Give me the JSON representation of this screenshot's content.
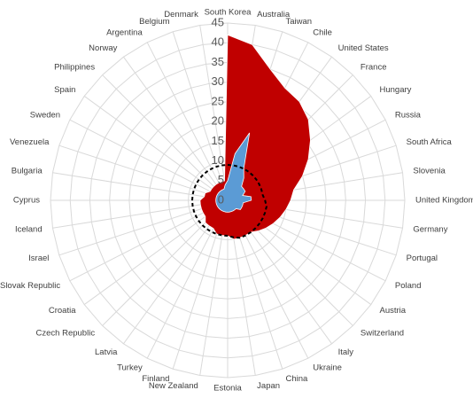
{
  "chart_data": {
    "type": "radar",
    "categories": [
      "South Korea",
      "Australia",
      "Taiwan",
      "Chile",
      "United States",
      "France",
      "Hungary",
      "Russia",
      "South Africa",
      "Slovenia",
      "United Kingdom",
      "Germany",
      "Portugal",
      "Poland",
      "Austria",
      "Switzerland",
      "Italy",
      "Ukraine",
      "China",
      "Japan",
      "Estonia",
      "New Zealand",
      "Finland",
      "Turkey",
      "Latvia",
      "Czech Republic",
      "Croatia",
      "Slovak Republic",
      "Israel",
      "Iceland",
      "Cyprus",
      "Bulgaria",
      "Venezuela",
      "Sweden",
      "Spain",
      "Philippines",
      "Norway",
      "Argentina",
      "Belgium",
      "Denmark"
    ],
    "series": [
      {
        "color": "#c00000",
        "fill": true,
        "values": [
          42,
          40,
          35,
          32,
          31,
          29,
          26,
          23,
          20,
          17,
          16,
          15,
          14,
          13,
          12,
          11,
          10,
          10,
          10,
          10,
          9,
          9,
          9,
          8,
          8,
          8,
          7,
          7,
          7,
          7,
          7,
          6,
          6,
          5,
          5,
          5,
          5,
          5,
          5,
          5
        ]
      },
      {
        "color": "#5b9bd5",
        "fill": true,
        "values": [
          5,
          12,
          18,
          9,
          7,
          5,
          5,
          5,
          4,
          6,
          6,
          4,
          4,
          4,
          4,
          3,
          3,
          3,
          3,
          3,
          3,
          3,
          3,
          3,
          3,
          3,
          3,
          3,
          3,
          3,
          3,
          3,
          3,
          3,
          3,
          3,
          3,
          3,
          3,
          4
        ]
      },
      {
        "color": "#000000",
        "fill": false,
        "dashed": true,
        "values": [
          9,
          9,
          9,
          9,
          9,
          9,
          9,
          9,
          9,
          9,
          9.5,
          10,
          10,
          10,
          10,
          10,
          10,
          10,
          10,
          9.5,
          9,
          9,
          9,
          9,
          9,
          9,
          9,
          9,
          9,
          9,
          9,
          9,
          9,
          9,
          9,
          9,
          9,
          9,
          9,
          9
        ]
      }
    ],
    "ylim": [
      0,
      45
    ],
    "yticks": [
      0,
      5,
      10,
      15,
      20,
      25,
      30,
      35,
      40,
      45
    ],
    "grid": true
  }
}
